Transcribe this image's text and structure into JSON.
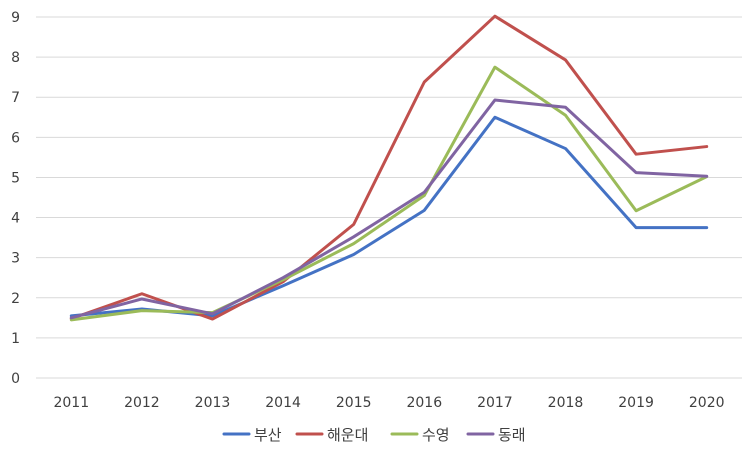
{
  "chart_data": {
    "type": "line",
    "title": "",
    "xlabel": "",
    "ylabel": "",
    "categories": [
      "2011",
      "2012",
      "2013",
      "2014",
      "2015",
      "2016",
      "2017",
      "2018",
      "2019",
      "2020"
    ],
    "ylim": [
      0,
      9
    ],
    "yticks": [
      "0",
      "1",
      "2",
      "3",
      "4",
      "5",
      "6",
      "7",
      "8",
      "9"
    ],
    "grid": true,
    "legend_position": "bottom",
    "series": [
      {
        "name": "부산",
        "color": "#4472c4",
        "values": [
          1.55,
          1.72,
          1.55,
          2.3,
          3.08,
          4.18,
          6.5,
          5.72,
          3.75,
          3.75
        ]
      },
      {
        "name": "해운대",
        "color": "#c0504d",
        "values": [
          1.48,
          2.1,
          1.47,
          2.4,
          3.83,
          7.38,
          9.02,
          7.93,
          5.58,
          5.77
        ]
      },
      {
        "name": "수영",
        "color": "#9bbb59",
        "values": [
          1.45,
          1.68,
          1.63,
          2.45,
          3.35,
          4.55,
          7.75,
          6.55,
          4.17,
          5.02
        ]
      },
      {
        "name": "동래",
        "color": "#8064a2",
        "values": [
          1.5,
          1.97,
          1.6,
          2.5,
          3.52,
          4.63,
          6.93,
          6.75,
          5.12,
          5.03
        ]
      }
    ]
  }
}
